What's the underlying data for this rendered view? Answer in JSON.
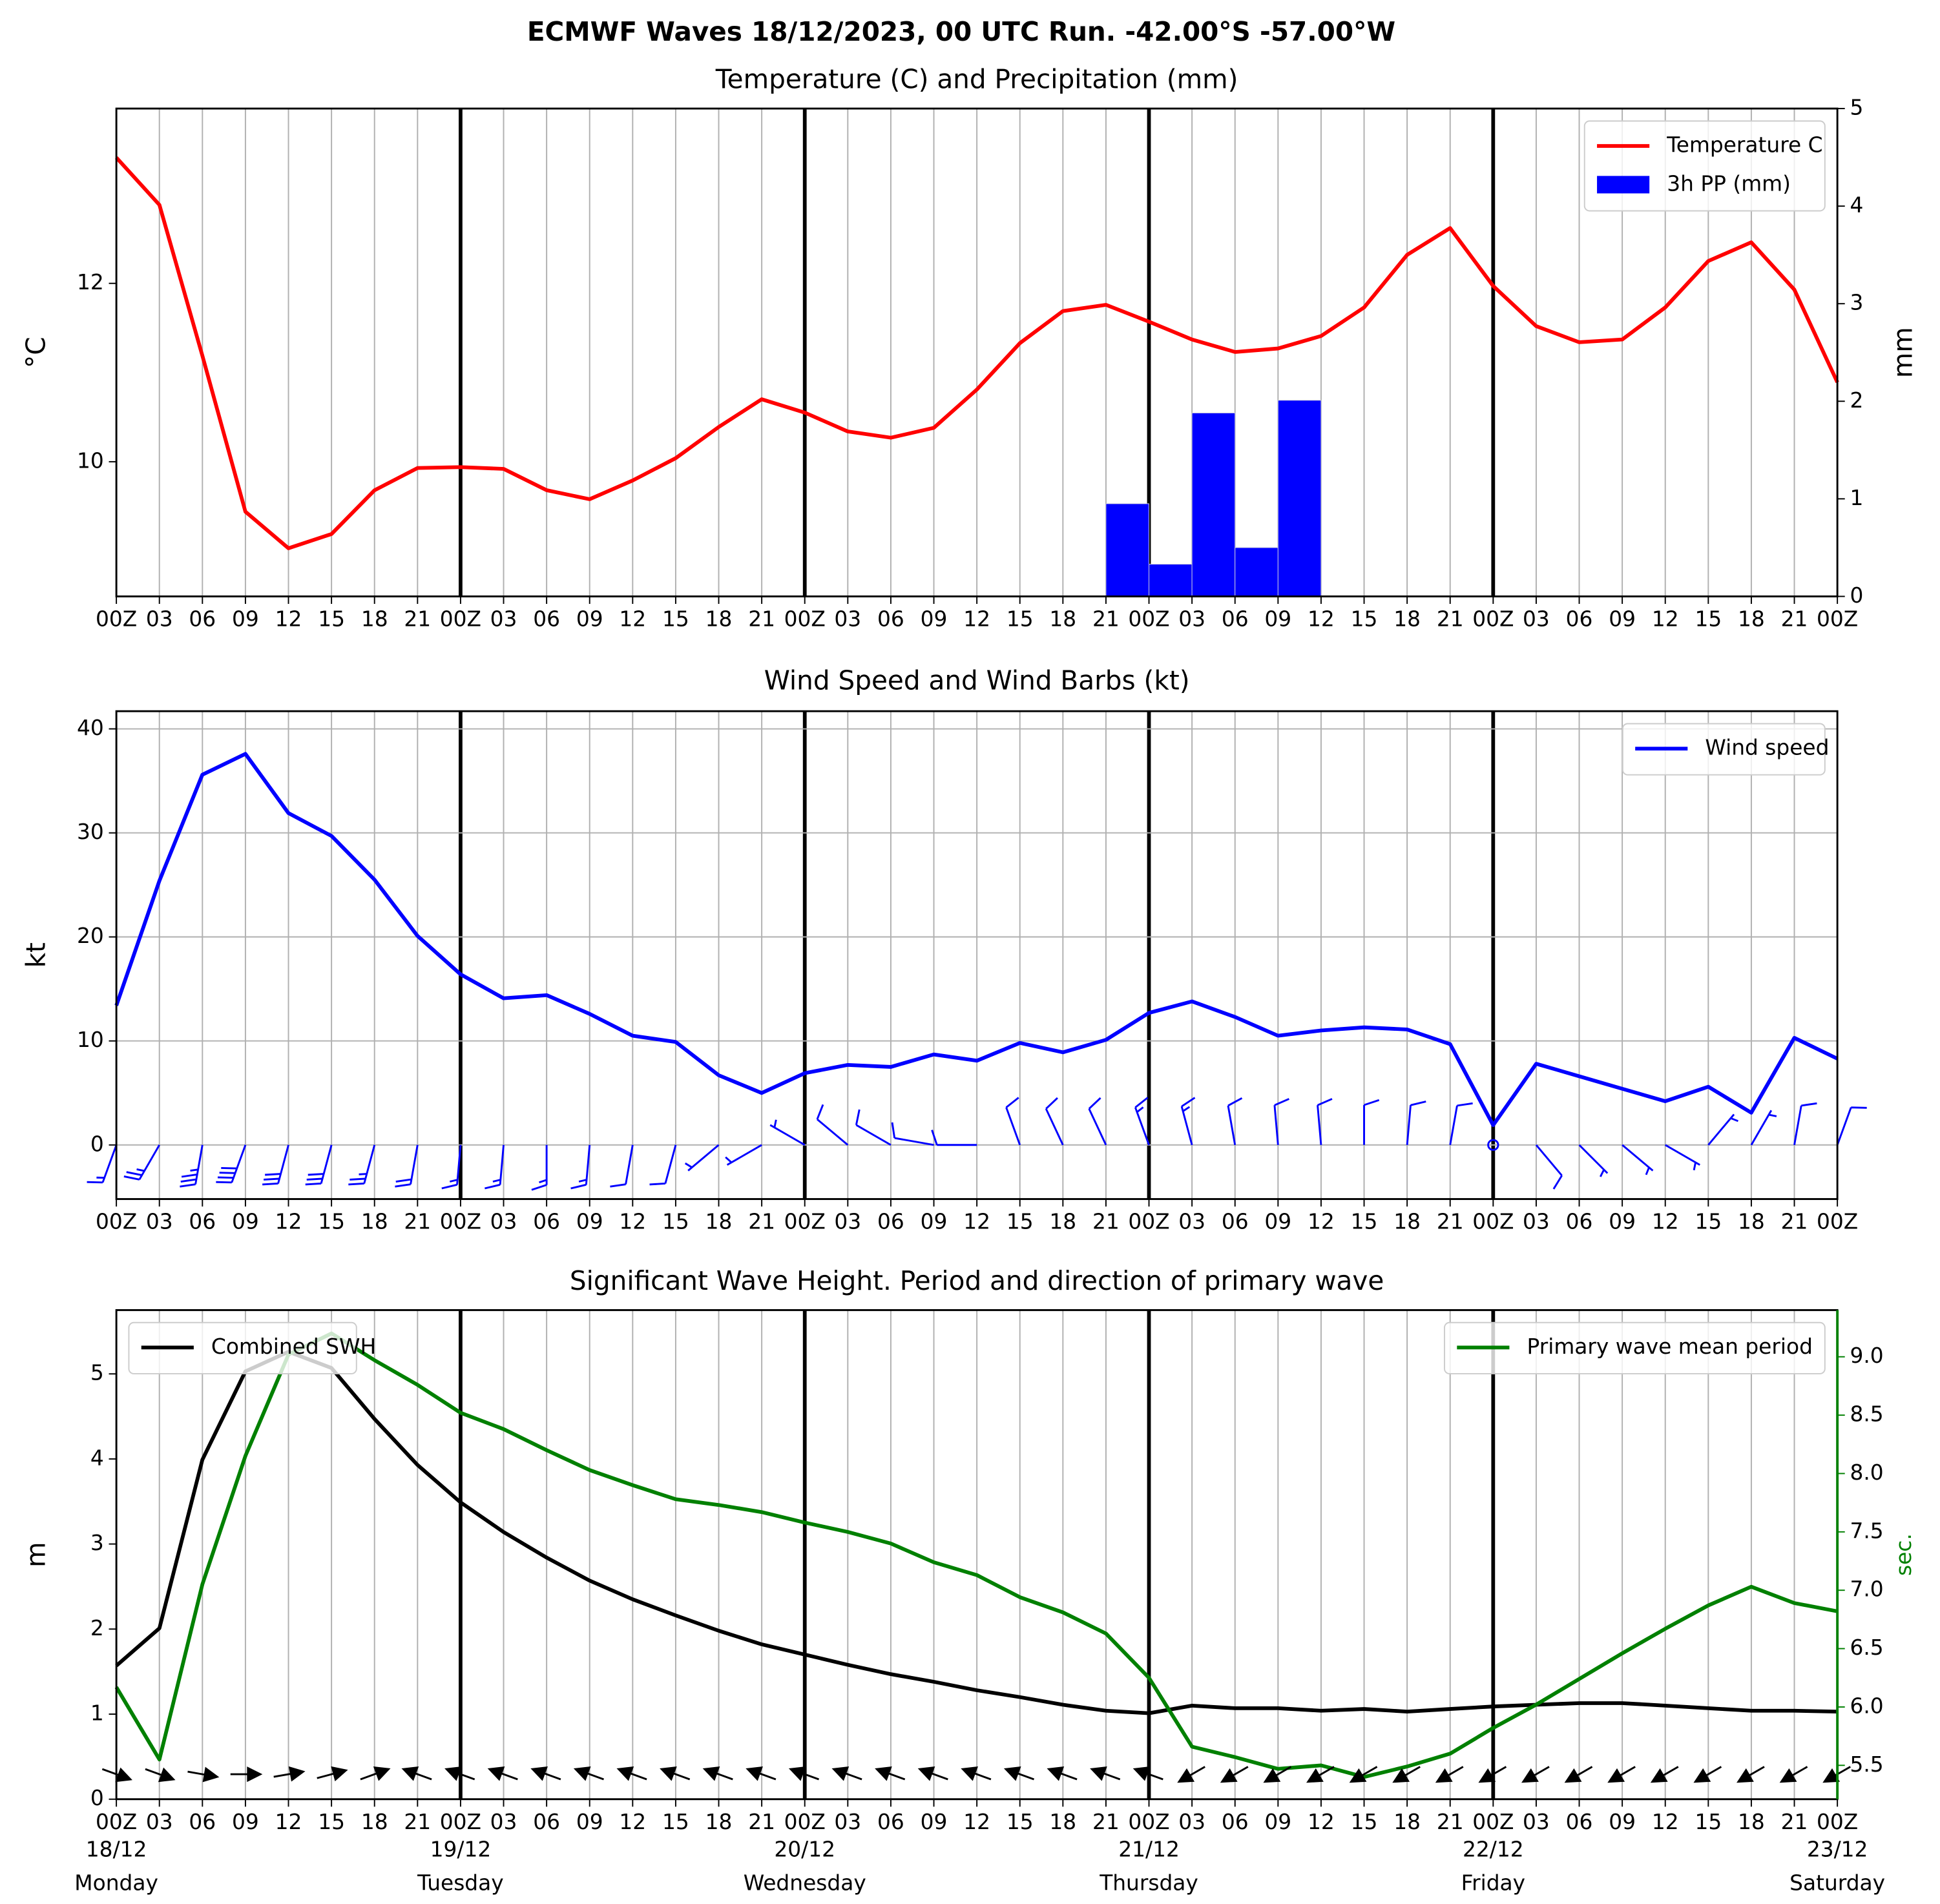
{
  "suptitle": "ECMWF Waves 18/12/2023, 00 UTC Run. -42.00°S -57.00°W",
  "chart_data": [
    {
      "type": "line",
      "title": "Temperature (C) and Precipitation (mm)",
      "ylabel": "°C",
      "y2label": "mm",
      "categories": [
        "00Z",
        "03",
        "06",
        "09",
        "12",
        "15",
        "18",
        "21",
        "00Z",
        "03",
        "06",
        "09",
        "12",
        "15",
        "18",
        "21",
        "00Z",
        "03",
        "06",
        "09",
        "12",
        "15",
        "18",
        "21",
        "00Z",
        "03",
        "06",
        "09",
        "12",
        "15",
        "18",
        "21",
        "00Z",
        "03",
        "06",
        "09",
        "12",
        "15",
        "18",
        "21",
        "00Z"
      ],
      "series": [
        {
          "name": "Temperature C",
          "color": "#ff0000",
          "values": [
            13.41,
            12.88,
            11.19,
            9.44,
            9.03,
            9.19,
            9.68,
            9.93,
            9.94,
            9.92,
            9.68,
            9.58,
            9.79,
            10.04,
            10.39,
            10.7,
            10.55,
            10.34,
            10.27,
            10.38,
            10.81,
            11.33,
            11.69,
            11.76,
            11.57,
            11.37,
            11.23,
            11.27,
            11.41,
            11.73,
            12.32,
            12.62,
            11.97,
            11.52,
            11.34,
            11.37,
            11.73,
            12.25,
            12.46,
            11.93,
            10.89
          ]
        },
        {
          "name": "3h PP (mm)",
          "type": "bar",
          "axis": "y2",
          "color": "#0000ff",
          "values": [
            0,
            0,
            0,
            0,
            0,
            0,
            0,
            0,
            0,
            0,
            0,
            0,
            0,
            0,
            0,
            0,
            0,
            0,
            0,
            0,
            0,
            0,
            0,
            0.95,
            0.33,
            1.88,
            0.5,
            2.01,
            0,
            0,
            0,
            0,
            0,
            0,
            0,
            0,
            0,
            0,
            0,
            0,
            0
          ]
        }
      ],
      "ylim": [
        8.49,
        13.96
      ],
      "yticks": [
        10,
        12
      ],
      "y2lim": [
        0,
        5
      ],
      "y2ticks": [
        0,
        1,
        2,
        3,
        4,
        5
      ],
      "grid": "x",
      "legend": "upper right"
    },
    {
      "type": "line",
      "title": "Wind Speed and Wind Barbs (kt)",
      "ylabel": "kt",
      "categories": [
        "00Z",
        "03",
        "06",
        "09",
        "12",
        "15",
        "18",
        "21",
        "00Z",
        "03",
        "06",
        "09",
        "12",
        "15",
        "18",
        "21",
        "00Z",
        "03",
        "06",
        "09",
        "12",
        "15",
        "18",
        "21",
        "00Z",
        "03",
        "06",
        "09",
        "12",
        "15",
        "18",
        "21",
        "00Z",
        "03",
        "06",
        "09",
        "12",
        "15",
        "18",
        "21",
        "00Z"
      ],
      "series": [
        {
          "name": "Wind speed",
          "color": "#0000ff",
          "values": [
            13.4,
            25.4,
            35.6,
            37.6,
            31.9,
            29.7,
            25.5,
            20.1,
            16.4,
            14.1,
            14.4,
            12.6,
            10.5,
            9.9,
            6.7,
            5.0,
            6.9,
            7.7,
            7.5,
            8.7,
            8.1,
            9.8,
            8.9,
            10.1,
            12.7,
            13.8,
            12.3,
            10.5,
            11.0,
            11.3,
            11.1,
            9.7,
            1.9,
            7.8,
            6.6,
            5.4,
            4.2,
            5.6,
            3.1,
            10.3,
            8.3
          ]
        }
      ],
      "barb_direction": [
        200,
        210,
        190,
        200,
        195,
        195,
        195,
        190,
        185,
        185,
        180,
        185,
        190,
        195,
        230,
        240,
        300,
        310,
        300,
        280,
        270,
        340,
        335,
        335,
        340,
        345,
        350,
        355,
        355,
        0,
        5,
        10,
        0,
        140,
        135,
        130,
        120,
        40,
        30,
        10,
        20
      ],
      "ylim": [
        -5.2,
        41.7
      ],
      "yticks": [
        0,
        10,
        20,
        30,
        40
      ],
      "grid": "both",
      "legend": "upper right"
    },
    {
      "type": "line",
      "title": "Significant Wave Height. Period and direction of primary wave",
      "ylabel": "m",
      "y2label": "sec.",
      "y2color": "#008000",
      "categories": [
        "00Z",
        "03",
        "06",
        "09",
        "12",
        "15",
        "18",
        "21",
        "00Z",
        "03",
        "06",
        "09",
        "12",
        "15",
        "18",
        "21",
        "00Z",
        "03",
        "06",
        "09",
        "12",
        "15",
        "18",
        "21",
        "00Z",
        "03",
        "06",
        "09",
        "12",
        "15",
        "18",
        "21",
        "00Z",
        "03",
        "06",
        "09",
        "12",
        "15",
        "18",
        "21",
        "00Z"
      ],
      "dates": [
        "18/12",
        "19/12",
        "20/12",
        "21/12",
        "22/12",
        "23/12"
      ],
      "days": [
        "Monday",
        "Tuesday",
        "Wednesday",
        "Thursday",
        "Friday",
        "Saturday"
      ],
      "series": [
        {
          "name": "Combined SWH",
          "color": "#000000",
          "values": [
            1.57,
            2.01,
            3.99,
            5.03,
            5.26,
            5.07,
            4.47,
            3.93,
            3.49,
            3.14,
            2.84,
            2.57,
            2.35,
            2.16,
            1.98,
            1.82,
            1.7,
            1.58,
            1.47,
            1.38,
            1.28,
            1.2,
            1.11,
            1.04,
            1.01,
            1.1,
            1.07,
            1.07,
            1.04,
            1.06,
            1.03,
            1.06,
            1.09,
            1.11,
            1.13,
            1.13,
            1.1,
            1.07,
            1.04,
            1.04,
            1.03
          ]
        },
        {
          "name": "Primary wave mean period",
          "color": "#008000",
          "axis": "y2",
          "legend": "upper right",
          "values": [
            6.17,
            5.55,
            7.05,
            8.15,
            9.02,
            9.2,
            8.97,
            8.76,
            8.52,
            8.38,
            8.2,
            8.03,
            7.9,
            7.78,
            7.73,
            7.67,
            7.58,
            7.5,
            7.4,
            7.24,
            7.13,
            6.94,
            6.81,
            6.63,
            6.25,
            5.66,
            5.57,
            5.47,
            5.5,
            5.4,
            5.49,
            5.6,
            5.82,
            6.02,
            6.24,
            6.46,
            6.67,
            6.87,
            7.03,
            6.89,
            6.82
          ]
        }
      ],
      "wave_direction": [
        110,
        110,
        100,
        90,
        80,
        75,
        70,
        290,
        290,
        290,
        290,
        290,
        290,
        290,
        290,
        290,
        290,
        290,
        290,
        290,
        290,
        290,
        290,
        290,
        290,
        240,
        240,
        240,
        240,
        240,
        240,
        240,
        240,
        240,
        240,
        240,
        240,
        240,
        240,
        240,
        240
      ],
      "ylim": [
        0,
        5.75
      ],
      "yticks": [
        0,
        1,
        2,
        3,
        4,
        5
      ],
      "y2lim": [
        5.21,
        9.4
      ],
      "y2ticks": [
        5.5,
        6.0,
        6.5,
        7.0,
        7.5,
        8.0,
        8.5,
        9.0
      ],
      "grid": "x",
      "legend": "upper left"
    }
  ]
}
